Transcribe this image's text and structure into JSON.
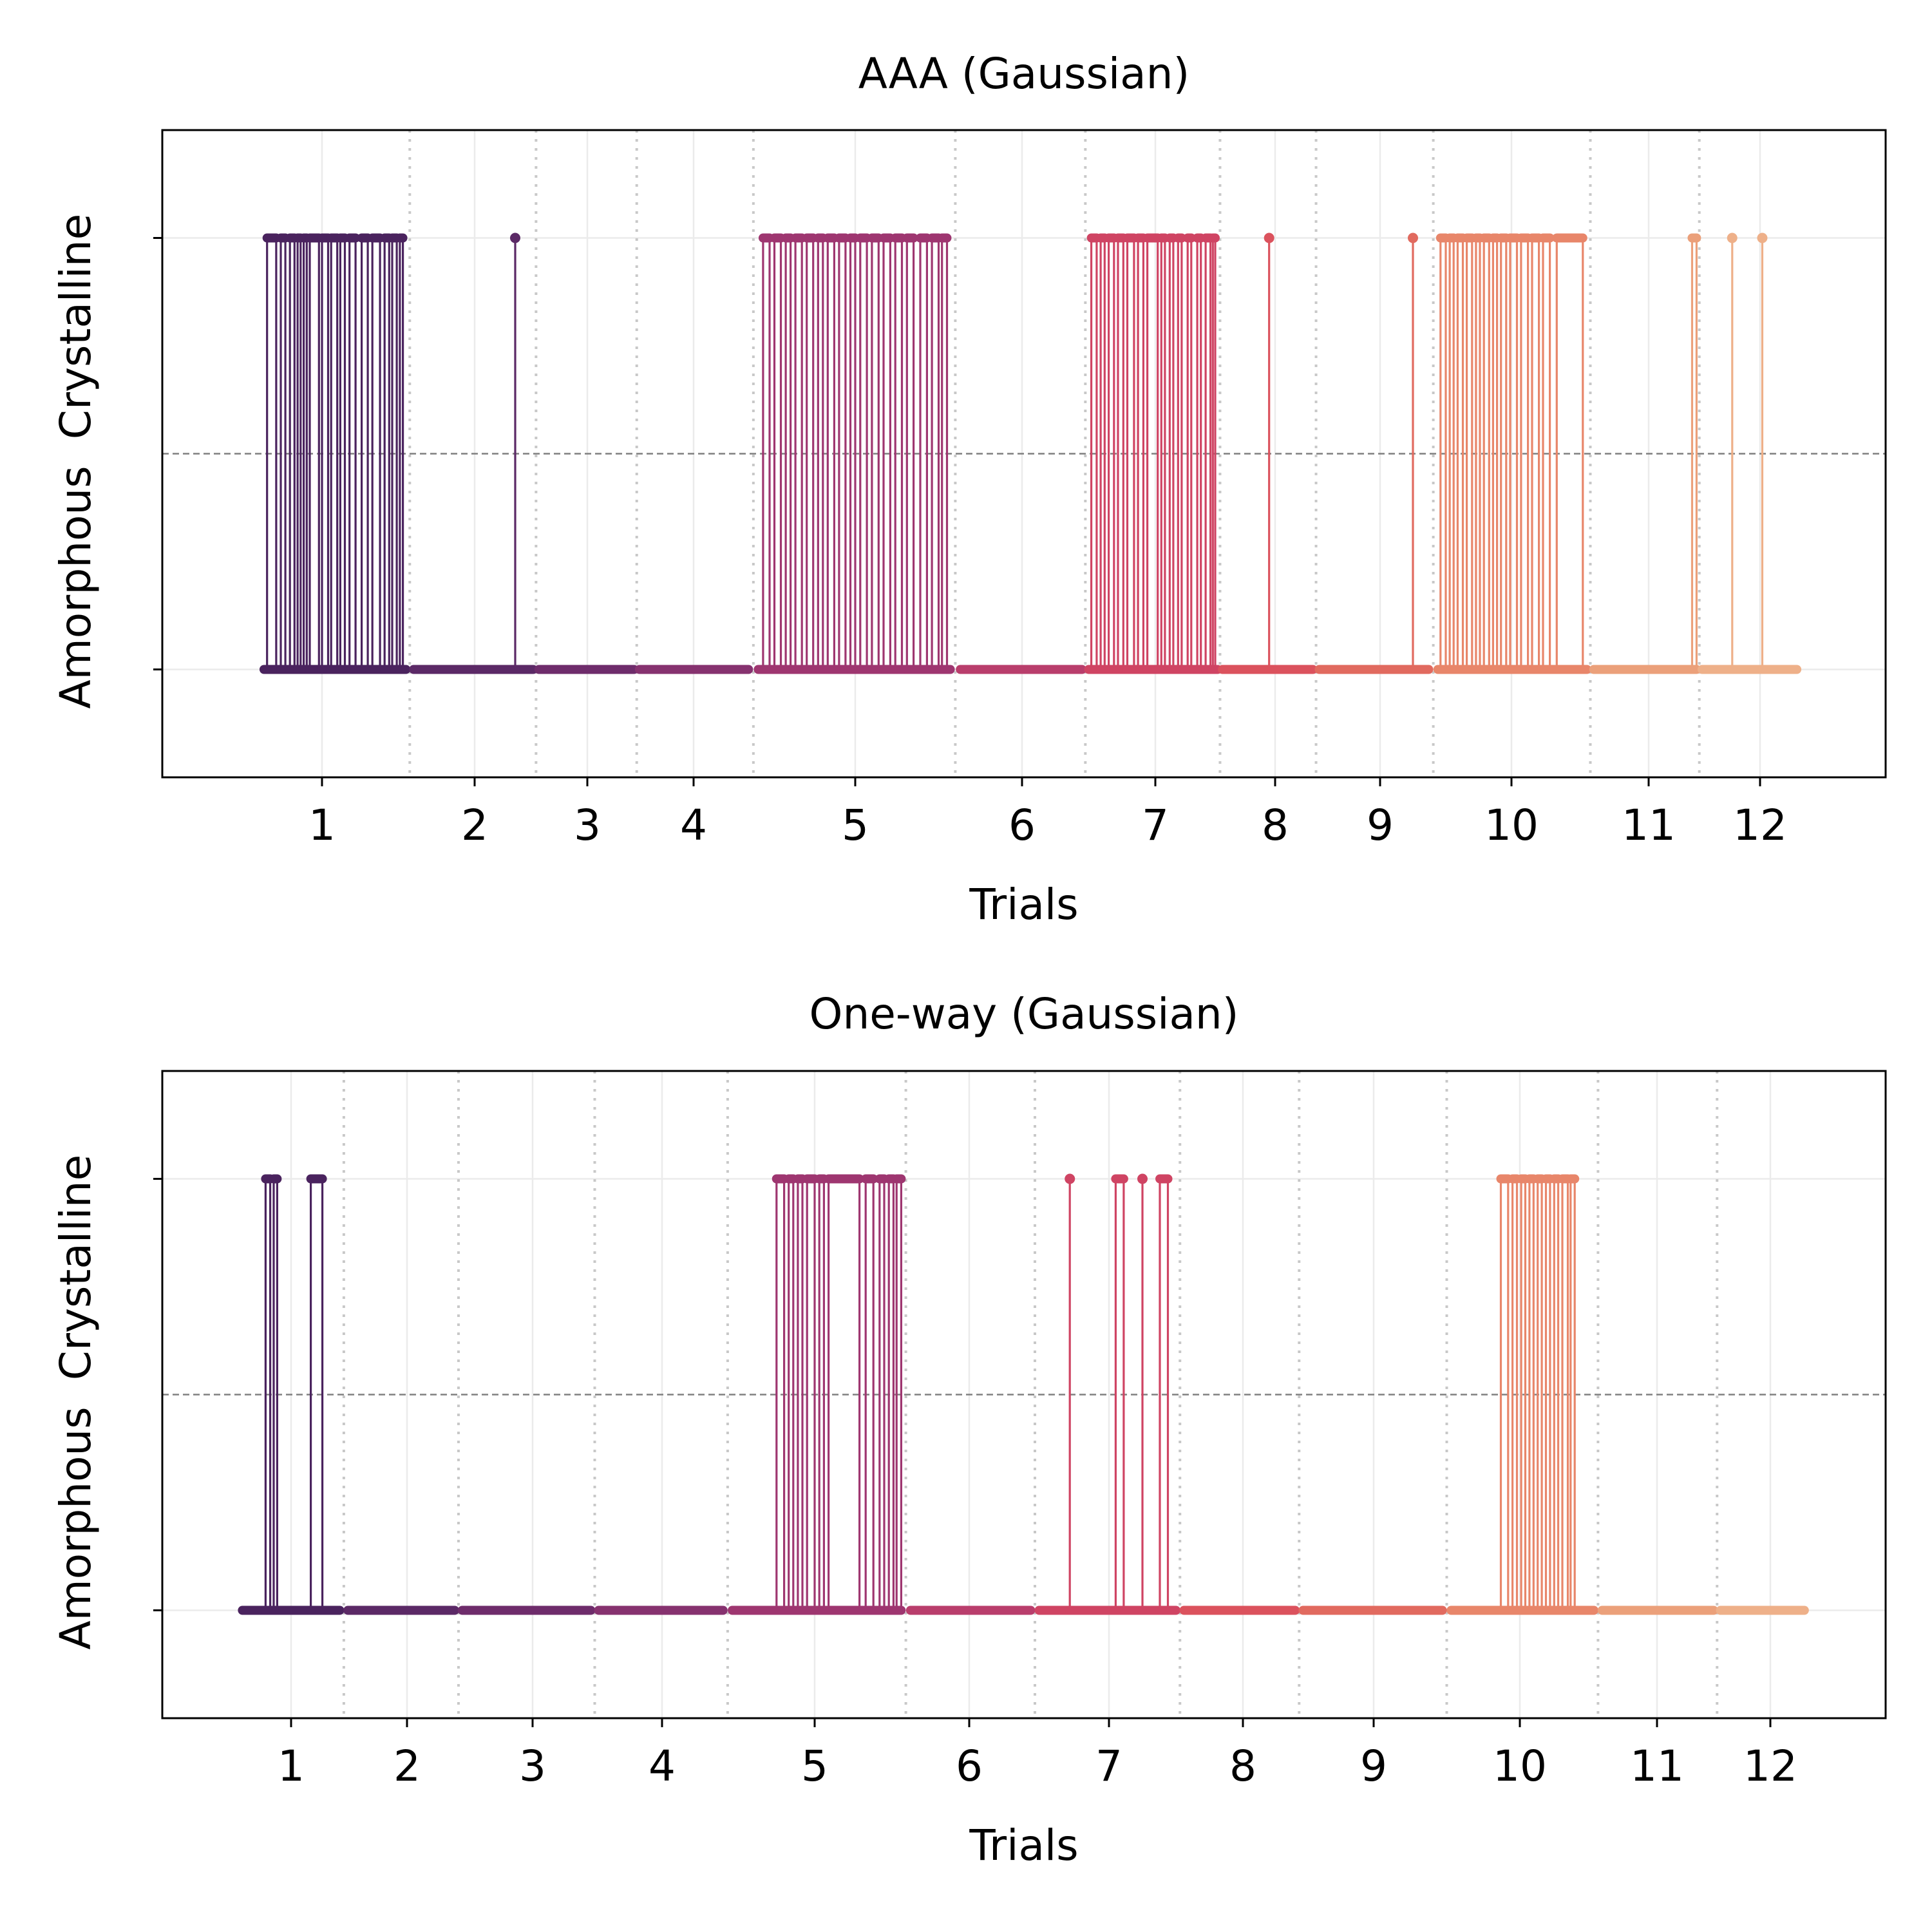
{
  "chart_data": [
    {
      "type": "line",
      "title": "AAA (Gaussian)",
      "xlabel": "Trials",
      "ylabel": "",
      "y_ticks": [
        "Amorphous",
        "Crystalline"
      ],
      "x_ticks": [
        "1",
        "2",
        "3",
        "4",
        "5",
        "6",
        "7",
        "8",
        "9",
        "10",
        "11",
        "12"
      ],
      "ylim": [
        -0.25,
        1.25
      ],
      "threshold": 0.5,
      "grid": true,
      "legend": "none",
      "trials": [
        {
          "label": "1",
          "range": [
            0.62,
            1.55
          ],
          "color": "#4a235e",
          "crystalline_runs": [
            [
              0.64,
              0.7
            ],
            [
              0.73,
              0.76
            ],
            [
              0.79,
              0.82
            ],
            [
              0.84,
              0.86
            ],
            [
              0.88,
              0.9
            ],
            [
              0.92,
              0.98
            ],
            [
              1.0,
              1.04
            ],
            [
              1.06,
              1.1
            ],
            [
              1.12,
              1.15
            ],
            [
              1.18,
              1.22
            ],
            [
              1.26,
              1.3
            ],
            [
              1.33,
              1.38
            ],
            [
              1.41,
              1.44
            ],
            [
              1.46,
              1.49
            ],
            [
              1.51,
              1.53
            ]
          ]
        },
        {
          "label": "2",
          "range": [
            1.6,
            2.52
          ],
          "color": "#5b2966",
          "crystalline_runs": [
            [
              2.36,
              2.36
            ]
          ]
        },
        {
          "label": "3",
          "range": [
            2.57,
            3.44
          ],
          "color": "#6e2c6b",
          "crystalline_runs": []
        },
        {
          "label": "4",
          "range": [
            3.49,
            4.34
          ],
          "color": "#86326f",
          "crystalline_runs": []
        },
        {
          "label": "5",
          "range": [
            4.4,
            5.57
          ],
          "color": "#9e3670",
          "crystalline_runs": [
            [
              4.43,
              4.47
            ],
            [
              4.5,
              4.54
            ],
            [
              4.57,
              4.6
            ],
            [
              4.63,
              4.67
            ],
            [
              4.7,
              4.74
            ],
            [
              4.77,
              4.8
            ],
            [
              4.83,
              4.87
            ],
            [
              4.9,
              4.94
            ],
            [
              4.97,
              5.0
            ],
            [
              5.03,
              5.07
            ],
            [
              5.1,
              5.14
            ],
            [
              5.17,
              5.21
            ],
            [
              5.24,
              5.28
            ],
            [
              5.31,
              5.35
            ],
            [
              5.39,
              5.43
            ],
            [
              5.46,
              5.5
            ],
            [
              5.52,
              5.55
            ]
          ]
        },
        {
          "label": "6",
          "range": [
            5.63,
            6.45
          ],
          "color": "#b93e6c",
          "crystalline_runs": []
        },
        {
          "label": "7",
          "range": [
            6.5,
            7.52
          ],
          "color": "#cf4463",
          "crystalline_runs": [
            [
              6.52,
              6.56
            ],
            [
              6.59,
              6.62
            ],
            [
              6.65,
              6.69
            ],
            [
              6.72,
              6.76
            ],
            [
              6.79,
              6.84
            ],
            [
              6.87,
              6.91
            ],
            [
              6.94,
              7.02
            ],
            [
              7.05,
              7.08
            ],
            [
              7.12,
              7.15
            ],
            [
              7.19,
              7.22
            ],
            [
              7.27,
              7.3
            ],
            [
              7.35,
              7.38
            ],
            [
              7.42,
              7.46
            ],
            [
              7.48,
              7.5
            ]
          ]
        },
        {
          "label": "8",
          "range": [
            7.56,
            8.36
          ],
          "color": "#db525d",
          "crystalline_runs": [
            [
              7.95,
              7.95
            ]
          ]
        },
        {
          "label": "9",
          "range": [
            8.42,
            9.37
          ],
          "color": "#e16a5f",
          "crystalline_runs": [
            [
              9.25,
              9.25
            ]
          ]
        },
        {
          "label": "10",
          "range": [
            9.44,
            10.55
          ],
          "color": "#e8866a",
          "crystalline_runs": [
            [
              9.46,
              9.5
            ],
            [
              9.53,
              9.56
            ],
            [
              9.59,
              9.63
            ],
            [
              9.66,
              9.7
            ],
            [
              9.73,
              9.76
            ],
            [
              9.79,
              9.83
            ],
            [
              9.86,
              9.89
            ],
            [
              9.92,
              9.96
            ],
            [
              9.99,
              10.04
            ],
            [
              10.07,
              10.12
            ],
            [
              10.15,
              10.2
            ],
            [
              10.23,
              10.28
            ],
            [
              10.33,
              10.52
            ]
          ]
        },
        {
          "label": "11",
          "range": [
            10.6,
            11.43
          ],
          "color": "#eba07a",
          "crystalline_runs": [
            [
              11.39,
              11.43
            ]
          ]
        },
        {
          "label": "12",
          "range": [
            11.48,
            12.33
          ],
          "color": "#eeb089",
          "crystalline_runs": [
            [
              11.75,
              11.75
            ],
            [
              12.02,
              12.02
            ]
          ]
        }
      ]
    },
    {
      "type": "line",
      "title": "One-way (Gaussian)",
      "xlabel": "Trials",
      "ylabel": "",
      "y_ticks": [
        "Amorphous",
        "Crystalline"
      ],
      "x_ticks": [
        "1",
        "2",
        "3",
        "4",
        "5",
        "6",
        "7",
        "8",
        "9",
        "10",
        "11",
        "12"
      ],
      "ylim": [
        -0.25,
        1.25
      ],
      "threshold": 0.5,
      "grid": true,
      "legend": "none",
      "trials": [
        {
          "label": "1",
          "range": [
            0.58,
            1.42
          ],
          "color": "#4a235e",
          "crystalline_runs": [
            [
              0.78,
              0.82
            ],
            [
              0.85,
              0.88
            ],
            [
              1.17,
              1.27
            ]
          ]
        },
        {
          "label": "2",
          "range": [
            1.49,
            2.38
          ],
          "color": "#5b2966",
          "crystalline_runs": []
        },
        {
          "label": "3",
          "range": [
            2.44,
            3.45
          ],
          "color": "#6e2c6b",
          "crystalline_runs": []
        },
        {
          "label": "4",
          "range": [
            3.51,
            4.4
          ],
          "color": "#86326f",
          "crystalline_runs": []
        },
        {
          "label": "5",
          "range": [
            4.46,
            5.56
          ],
          "color": "#9e3670",
          "crystalline_runs": [
            [
              4.75,
              4.8
            ],
            [
              4.83,
              4.86
            ],
            [
              4.89,
              4.92
            ],
            [
              4.95,
              5.0
            ],
            [
              5.03,
              5.06
            ],
            [
              5.09,
              5.29
            ],
            [
              5.33,
              5.38
            ],
            [
              5.42,
              5.45
            ],
            [
              5.48,
              5.51
            ],
            [
              5.53,
              5.56
            ]
          ]
        },
        {
          "label": "6",
          "range": [
            5.62,
            6.44
          ],
          "color": "#b93e6c",
          "crystalline_runs": []
        },
        {
          "label": "7",
          "range": [
            6.5,
            7.5
          ],
          "color": "#cf4463",
          "crystalline_runs": [
            [
              6.72,
              6.72
            ],
            [
              7.05,
              7.11
            ],
            [
              7.25,
              7.25
            ],
            [
              7.38,
              7.44
            ]
          ]
        },
        {
          "label": "8",
          "range": [
            7.56,
            8.4
          ],
          "color": "#db525d",
          "crystalline_runs": []
        },
        {
          "label": "9",
          "range": [
            8.46,
            9.47
          ],
          "color": "#e16a5f",
          "crystalline_runs": []
        },
        {
          "label": "10",
          "range": [
            9.53,
            10.54
          ],
          "color": "#e8866a",
          "crystalline_runs": [
            [
              9.87,
              9.92
            ],
            [
              9.95,
              9.98
            ],
            [
              10.01,
              10.04
            ],
            [
              10.07,
              10.1
            ],
            [
              10.13,
              10.16
            ],
            [
              10.19,
              10.22
            ],
            [
              10.25,
              10.28
            ],
            [
              10.31,
              10.35
            ],
            [
              10.37,
              10.4
            ]
          ]
        },
        {
          "label": "11",
          "range": [
            10.6,
            11.5
          ],
          "color": "#eba07a",
          "crystalline_runs": []
        },
        {
          "label": "12",
          "range": [
            11.56,
            12.3
          ],
          "color": "#eeb089",
          "crystalline_runs": []
        }
      ]
    }
  ]
}
